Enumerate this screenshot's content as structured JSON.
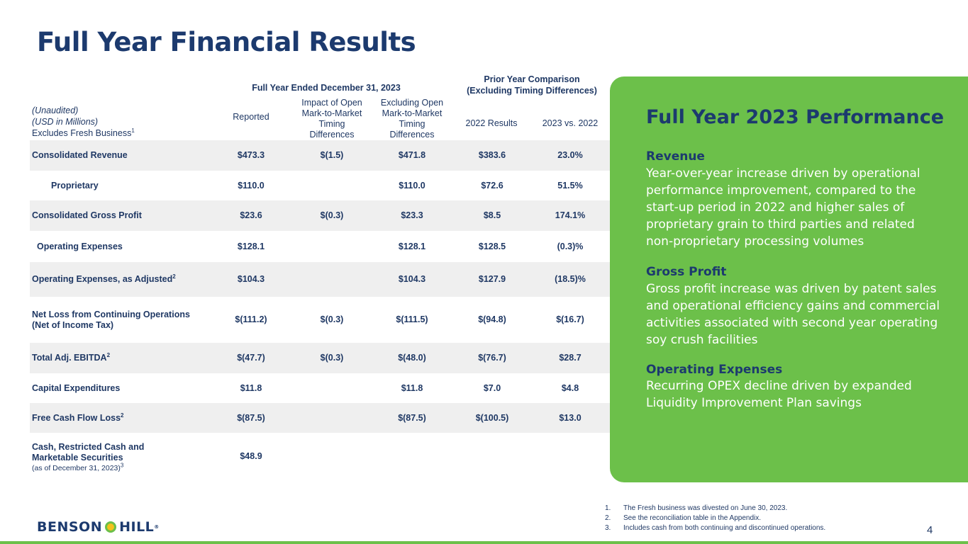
{
  "title": "Full Year Financial Results",
  "table": {
    "group1_header": "Full Year Ended December 31, 2023",
    "group2_header_line1": "Prior Year Comparison",
    "group2_header_line2": "(Excluding Timing Differences)",
    "left_header": {
      "line1": "(Unaudited)",
      "line2": "(USD in Millions)",
      "line3": "Excludes Fresh Business",
      "line3_sup": "1"
    },
    "columns": {
      "reported": "Reported",
      "impact": [
        "Impact of Open",
        "Mark-to-Market",
        "Timing",
        "Differences"
      ],
      "excluding": [
        "Excluding Open",
        "Mark-to-Market",
        "Timing",
        "Differences"
      ],
      "results_2022": "2022 Results",
      "vs": "2023 vs. 2022"
    },
    "rows": [
      {
        "label": "Consolidated  Revenue",
        "sup": "",
        "reported": "$473.3",
        "impact": "$(1.5)",
        "excluding": "$471.8",
        "prior": "$383.6",
        "vs": "23.0%"
      },
      {
        "label": "Proprietary",
        "sup": "",
        "reported": "$110.0",
        "impact": "",
        "excluding": "$110.0",
        "prior": "$72.6",
        "vs": "51.5%"
      },
      {
        "label": "Consolidated Gross Profit",
        "sup": "",
        "reported": "$23.6",
        "impact": "$(0.3)",
        "excluding": "$23.3",
        "prior": "$8.5",
        "vs": "174.1%"
      },
      {
        "label": "Operating Expenses",
        "sup": "",
        "reported": "$128.1",
        "impact": "",
        "excluding": "$128.1",
        "prior": "$128.5",
        "vs": "(0.3)%"
      },
      {
        "label": "Operating Expenses, as Adjusted",
        "sup": "2",
        "reported": "$104.3",
        "impact": "",
        "excluding": "$104.3",
        "prior": "$127.9",
        "vs": "(18.5)%"
      },
      {
        "label": "Net Loss from Continuing Operations",
        "label2": "(Net of Income Tax)",
        "sup": "",
        "reported": "$(111.2)",
        "impact": "$(0.3)",
        "excluding": "$(111.5)",
        "prior": "$(94.8)",
        "vs": "$(16.7)"
      },
      {
        "label": "Total Adj. EBITDA",
        "sup": "2",
        "reported": "$(47.7)",
        "impact": "$(0.3)",
        "excluding": "$(48.0)",
        "prior": "$(76.7)",
        "vs": "$28.7"
      },
      {
        "label": "Capital Expenditures",
        "sup": "",
        "reported": "$11.8",
        "impact": "",
        "excluding": "$11.8",
        "prior": "$7.0",
        "vs": "$4.8"
      },
      {
        "label": "Free Cash Flow Loss",
        "sup": "2",
        "reported": "$(87.5)",
        "impact": "",
        "excluding": "$(87.5)",
        "prior": "$(100.5)",
        "vs": "$13.0"
      },
      {
        "label": "Cash, Restricted Cash and",
        "label2": "Marketable Securities",
        "label3": "(as of December 31, 2023)",
        "sup3": "3",
        "reported": "$48.9",
        "impact": "",
        "excluding": "",
        "prior": "",
        "vs": ""
      }
    ]
  },
  "panel": {
    "title": "Full Year 2023 Performance",
    "sections": [
      {
        "head": "Revenue",
        "body": "Year-over-year increase driven by operational performance improvement, compared to the start-up period in 2022 and higher sales of proprietary grain to third parties and related non-proprietary processing volumes"
      },
      {
        "head": "Gross Profit",
        "body": "Gross profit increase was driven by patent sales and operational efficiency gains and commercial activities associated with second year operating soy crush facilities"
      },
      {
        "head": "Operating Expenses",
        "body": "Recurring OPEX decline driven by expanded Liquidity Improvement Plan savings"
      }
    ],
    "colors": {
      "green": "#6cc04a",
      "navy": "#1c3a6e"
    }
  },
  "footnotes": [
    {
      "num": "1.",
      "text": "The Fresh business was divested on June 30, 2023."
    },
    {
      "num": "2.",
      "text": "See the reconciliation table in the Appendix."
    },
    {
      "num": "3.",
      "text": "Includes cash from both continuing and discontinued operations."
    }
  ],
  "logo": {
    "left": "BENSON",
    "right": "HILL",
    "reg": "®"
  },
  "page_number": "4"
}
